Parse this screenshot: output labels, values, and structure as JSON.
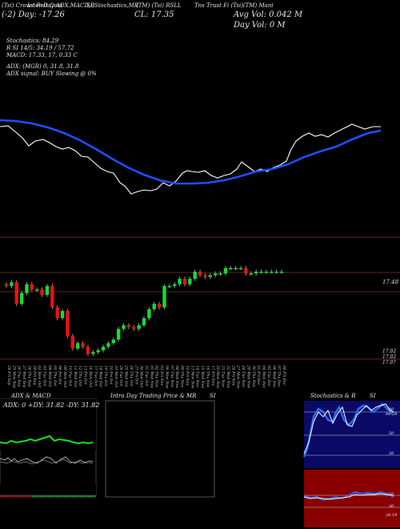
{
  "header": {
    "line1_left": "(Tsi) Crown Reit Com",
    "line1_ind1": "Inter-Day ADX,MACD,B",
    "line1_ind2": "SI,Stochastics,MR",
    "line1_ind3": "(TM) (Tsi) RSLL",
    "line1_right": "Tns Trust Fi (Tsi)(TM) Mani",
    "line2_open": "(-2) Day: -17.26",
    "line2_close": "CL: 17.35",
    "avg_vol": "Avg Vol: 0.042  M",
    "day_vol": "Day Vol: 0   M"
  },
  "indicators": {
    "stoch": "Stochastics: 84.29",
    "rsi": "R         SI 14/5: 34.19 / 57.72",
    "macd": "MACD: 17.33,  17,  0.33 C",
    "adx": "ADX:                              (MGR) 0,  31.8,  31.8",
    "adx_signal": "ADX  signal:                                BUY Slowing @ 0%"
  },
  "price_labels": {
    "top": "17.48",
    "bot1": "17.02",
    "bot2": "17.02",
    "bot3": "17.0?"
  },
  "dates": [
    "24 Fri Sep",
    "25 Mon Sep",
    "26 Tue Sep",
    "27 Wed Sep",
    "28 Thu Sep",
    "29 Fri Sep",
    "02 Mon Oct",
    "03 Tue Oct",
    "04 Wed Oct",
    "05 Thu Oct",
    "06 Fri Oct",
    "09 Mon Oct",
    "10 Tue Oct",
    "11 Wed Oct",
    "12 Thu Oct",
    "13 Fri Oct",
    "16 Mon Oct",
    "17 Tue Oct",
    "18 Wed Oct",
    "19 Thu Oct",
    "20 Fri Oct",
    "23 Mon Oct",
    "24 Tue Oct",
    "25 Wed Oct",
    "26 Thu Oct",
    "27 Fri Oct",
    "30 Mon Oct",
    "31 Tue Oct",
    "01 Wed Nov",
    "02 Thu Nov",
    "03 Fri Nov",
    "06 Mon Nov",
    "07 Tue Nov",
    "08 Wed Nov",
    "09 Thu Nov",
    "10 Fri Nov",
    "13 Mon Nov",
    "14 Tue Nov",
    "15 Wed Nov",
    "16 Thu Nov",
    "17 Fri Nov",
    "20 Mon Nov",
    "21 Tue Nov",
    "22 Wed Nov",
    "24 Fri Nov",
    "27 Mon Nov",
    "28 Tue Nov",
    "29 Wed Nov",
    "30 Thu Nov",
    "01 Fri Dec",
    "04 Mon Dec",
    "05 Tue Dec",
    "06 Wed Dec",
    "07 Thu Dec",
    "08 Fri Dec"
  ],
  "panels": {
    "adx_title": "ADX  & MACD",
    "adx_readout": "ADX: 0   +DY: 31.82   -DY: 31.82",
    "mr_title": "Intra Day Trading Price  & MR",
    "mr_si": "SI",
    "stoch_title": "Stochastics & R",
    "stoch_si": "SI",
    "stoch_ticks": [
      "80",
      "50",
      "20"
    ],
    "rsi_ticks": [
      "50",
      "30"
    ],
    "stoch_val": "84.29",
    "rsi_val": "34.19"
  },
  "chart_data": {
    "type": "candlestick",
    "series": [
      {
        "name": "price",
        "values": [
          17.4,
          17.42,
          17.3,
          17.36,
          17.41,
          17.38,
          17.38,
          17.35,
          17.4,
          17.28,
          17.22,
          17.26,
          17.12,
          17.05,
          17.08,
          17.06,
          17.02,
          17.03,
          17.04,
          17.06,
          17.08,
          17.1,
          17.16,
          17.18,
          17.17,
          17.16,
          17.18,
          17.22,
          17.27,
          17.3,
          17.28,
          17.4,
          17.4,
          17.41,
          17.44,
          17.41,
          17.44,
          17.48,
          17.46,
          17.45,
          17.46,
          17.47,
          17.47,
          17.5,
          17.5,
          17.5,
          17.5,
          17.47,
          17.47,
          17.48,
          17.48,
          17.48,
          17.48,
          17.48,
          17.48
        ]
      }
    ],
    "colors": {
      "up": "#11dd33",
      "down": "#ee1111",
      "ma": "#1e50ff"
    }
  }
}
